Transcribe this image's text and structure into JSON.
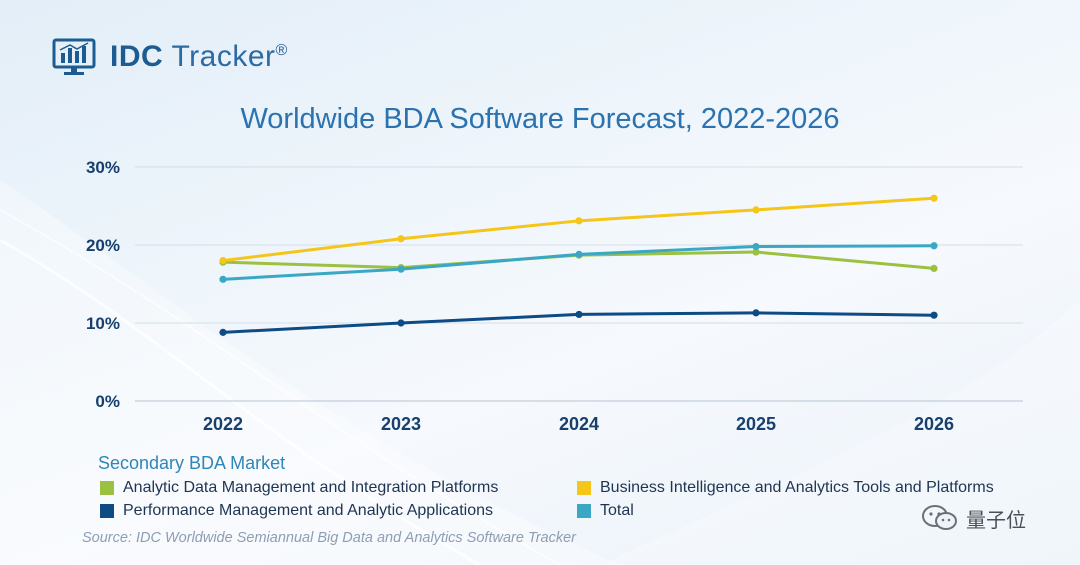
{
  "brand": {
    "name_bold": "IDC",
    "name_rest": " Tracker",
    "reg_mark": "®"
  },
  "chart_title": "Worldwide BDA Software Forecast, 2022-2026",
  "chart_data": {
    "type": "line",
    "title": "Worldwide BDA Software Forecast, 2022-2026",
    "x": [
      "2022",
      "2023",
      "2024",
      "2025",
      "2026"
    ],
    "ylim": [
      0,
      30
    ],
    "yticks": [
      "0%",
      "10%",
      "20%",
      "30%"
    ],
    "grid": true,
    "legend_title": "Secondary BDA Market",
    "legend_placement": "bottom",
    "series": [
      {
        "name": "Analytic Data Management and Integration Platforms",
        "color": "#9cc03f",
        "values": [
          17.8,
          17.1,
          18.7,
          19.1,
          17.0
        ]
      },
      {
        "name": "Business Intelligence and Analytics Tools and Platforms",
        "color": "#f5c518",
        "values": [
          18.0,
          20.8,
          23.1,
          24.5,
          26.0
        ]
      },
      {
        "name": "Performance Management and Analytic Applications",
        "color": "#0e4a84",
        "values": [
          8.8,
          10.0,
          11.1,
          11.3,
          11.0
        ]
      },
      {
        "name": "Total",
        "color": "#3aa8c4",
        "values": [
          15.6,
          16.9,
          18.8,
          19.8,
          19.9
        ]
      }
    ]
  },
  "source": "Source: IDC Worldwide Semiannual Big Data and Analytics Software Tracker",
  "watermark": {
    "text": "量子位",
    "icon": "wechat-icon"
  }
}
